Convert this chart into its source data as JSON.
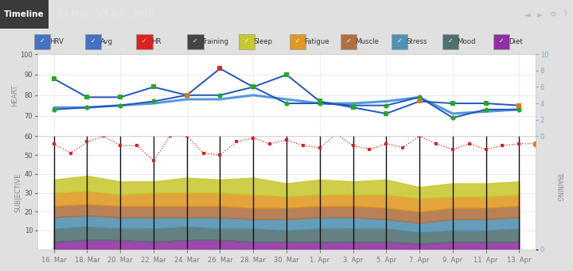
{
  "title": "14 Mar - 13 Apr, 2015",
  "header_label": "Timeline",
  "x_vals": [
    0,
    1,
    2,
    3,
    4,
    5,
    6,
    7,
    8,
    9,
    10,
    11,
    12,
    13,
    14
  ],
  "hrv_vals": [
    73,
    74,
    75,
    77,
    80,
    80,
    84,
    76,
    76,
    75,
    75,
    79,
    69,
    73,
    73
  ],
  "avg_vals": [
    74,
    74,
    75,
    76,
    78,
    78,
    80,
    78,
    76,
    76,
    77,
    79,
    71,
    72,
    73
  ],
  "hr_vals": [
    88,
    79,
    79,
    84,
    80,
    93,
    84,
    90,
    77,
    74,
    71,
    77,
    76,
    76,
    75
  ],
  "hr_line_color": "#3366cc",
  "hr_dot_colors": [
    "#22aa22",
    "#22aa22",
    "#22aa22",
    "#22aa22",
    "#22aa22",
    "#dd2222",
    "#22aa22",
    "#22aa22",
    "#22aa22",
    "#22aa22",
    "#22aa22",
    "#22aa22",
    "#22aa22",
    "#22aa22",
    "#22aa22"
  ],
  "hr_special_idx": [
    4,
    11,
    14
  ],
  "hr_special_color": "#e07800",
  "hrv_line_color": "#3366cc",
  "hrv_dot_color": "#22aa22",
  "avg_line_color": "#3366cc",
  "red_line_x": [
    0,
    0.5,
    1,
    1.5,
    2,
    2.5,
    3,
    3.5,
    4,
    4.5,
    5,
    5.5,
    6,
    6.5,
    7,
    7.5,
    8,
    8.5,
    9,
    9.5,
    10,
    10.5,
    11,
    11.5,
    12,
    12.5,
    13,
    13.5,
    14,
    14.5
  ],
  "red_line_vals": [
    56,
    51,
    57,
    60,
    55,
    55,
    47,
    60,
    60,
    51,
    50,
    57,
    59,
    56,
    58,
    55,
    54,
    61,
    55,
    53,
    56,
    54,
    60,
    56,
    53,
    56,
    53,
    55,
    56,
    56
  ],
  "training_bars_x": [
    0,
    1,
    2,
    3,
    4,
    5,
    6,
    7,
    8,
    9,
    10,
    11,
    12,
    13,
    14
  ],
  "sleep_vals": [
    7,
    8,
    7,
    6,
    8,
    7,
    9,
    7,
    8,
    7,
    8,
    6,
    7,
    7,
    7
  ],
  "fatigue_vals": [
    7,
    7,
    6,
    7,
    7,
    7,
    7,
    6,
    6,
    6,
    7,
    7,
    6,
    6,
    6
  ],
  "muscle_vals": [
    6,
    6,
    6,
    6,
    6,
    6,
    6,
    6,
    6,
    6,
    6,
    6,
    6,
    6,
    6
  ],
  "stress_vals": [
    6,
    6,
    6,
    6,
    5,
    6,
    5,
    6,
    6,
    6,
    5,
    5,
    6,
    6,
    6
  ],
  "mood_vals": [
    7,
    7,
    6,
    7,
    7,
    6,
    7,
    6,
    7,
    7,
    7,
    6,
    6,
    6,
    7
  ],
  "diet_vals": [
    4,
    5,
    5,
    4,
    5,
    5,
    4,
    4,
    4,
    4,
    4,
    3,
    4,
    4,
    4
  ],
  "sleep_color": "#c8c830",
  "fatigue_color": "#e09820",
  "muscle_color": "#b07040",
  "stress_color": "#5090b0",
  "mood_color": "#507070",
  "diet_color": "#9030a0",
  "legend_items": [
    {
      "label": "HRV",
      "color": "#4472c4"
    },
    {
      "label": "Avg",
      "color": "#4472c4"
    },
    {
      "label": "HR",
      "color": "#dd2222"
    },
    {
      "label": "Training",
      "color": "#444444"
    },
    {
      "label": "Sleep",
      "color": "#c8c830"
    },
    {
      "label": "Fatigue",
      "color": "#e09820"
    },
    {
      "label": "Muscle",
      "color": "#b07040"
    },
    {
      "label": "Stress",
      "color": "#5090b0"
    },
    {
      "label": "Mood",
      "color": "#507070"
    },
    {
      "label": "Diet",
      "color": "#9030a0"
    }
  ],
  "ylim_heart": [
    60,
    100
  ],
  "ylim_subj": [
    0,
    60
  ],
  "ylim_train_r": [
    0,
    10
  ],
  "heart_yticks": [
    70,
    80,
    90,
    100
  ],
  "subj_yticks": [
    10,
    20,
    30,
    40,
    50,
    60
  ],
  "train_r_yticks": [
    0,
    2,
    4,
    6,
    8,
    10
  ],
  "heart_label": "HEART",
  "subj_label": "SUBJECTIVE",
  "training_label": "TRAINING",
  "x_tick_labels": [
    "16. Mar",
    "18. Mar",
    "20. Mar",
    "22. Mar",
    "24. Mar",
    "26. Mar",
    "28. Mar",
    "30. Mar",
    "1. Apr",
    "3. Apr",
    "5. Apr",
    "7. Apr",
    "9. Apr",
    "11. Apr",
    "13. Apr"
  ]
}
